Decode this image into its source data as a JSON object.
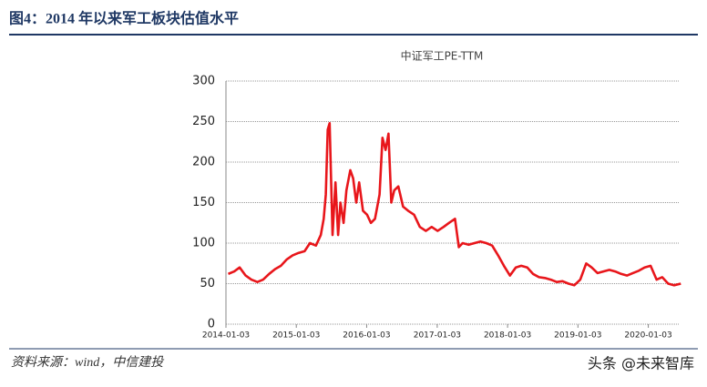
{
  "header": {
    "title": "图4：2014 年以来军工板块估值水平"
  },
  "chart_data": {
    "type": "line",
    "title": "中证军工PE-TTM",
    "color": "#e8161b",
    "x": [
      "2014-01-15",
      "2014-02-15",
      "2014-03-15",
      "2014-04-15",
      "2014-05-15",
      "2014-06-15",
      "2014-07-15",
      "2014-08-15",
      "2014-09-15",
      "2014-10-15",
      "2014-11-15",
      "2014-12-15",
      "2015-01-15",
      "2015-02-15",
      "2015-03-15",
      "2015-04-15",
      "2015-05-10",
      "2015-05-25",
      "2015-06-05",
      "2015-06-15",
      "2015-06-25",
      "2015-07-10",
      "2015-07-25",
      "2015-08-08",
      "2015-08-20",
      "2015-09-05",
      "2015-09-20",
      "2015-10-10",
      "2015-10-25",
      "2015-11-10",
      "2015-11-25",
      "2015-12-15",
      "2016-01-05",
      "2016-01-25",
      "2016-02-15",
      "2016-03-10",
      "2016-03-25",
      "2016-04-10",
      "2016-04-25",
      "2016-05-10",
      "2016-05-25",
      "2016-06-15",
      "2016-07-10",
      "2016-08-05",
      "2016-09-05",
      "2016-10-05",
      "2016-11-05",
      "2016-12-05",
      "2017-01-05",
      "2017-02-05",
      "2017-03-05",
      "2017-04-05",
      "2017-04-25",
      "2017-05-15",
      "2017-06-15",
      "2017-07-15",
      "2017-08-15",
      "2017-09-15",
      "2017-10-15",
      "2017-11-15",
      "2017-12-15",
      "2018-01-15",
      "2018-02-15",
      "2018-03-15",
      "2018-04-15",
      "2018-05-15",
      "2018-06-15",
      "2018-07-15",
      "2018-08-15",
      "2018-09-15",
      "2018-10-15",
      "2018-11-15",
      "2018-12-15",
      "2019-01-15",
      "2019-02-15",
      "2019-03-15",
      "2019-04-15",
      "2019-05-15",
      "2019-06-15",
      "2019-07-15",
      "2019-08-15",
      "2019-09-15",
      "2019-10-15",
      "2019-11-15",
      "2019-12-15",
      "2020-01-15",
      "2020-02-15",
      "2020-03-15",
      "2020-04-15",
      "2020-05-15",
      "2020-06-20"
    ],
    "values": [
      62,
      65,
      70,
      60,
      55,
      52,
      55,
      62,
      68,
      72,
      80,
      85,
      88,
      90,
      100,
      97,
      110,
      130,
      160,
      240,
      248,
      110,
      175,
      110,
      150,
      125,
      165,
      190,
      180,
      150,
      175,
      140,
      135,
      125,
      130,
      160,
      230,
      215,
      235,
      150,
      165,
      170,
      145,
      140,
      135,
      120,
      115,
      120,
      115,
      120,
      125,
      130,
      95,
      100,
      98,
      100,
      102,
      100,
      97,
      85,
      72,
      60,
      70,
      72,
      70,
      62,
      58,
      57,
      55,
      52,
      53,
      50,
      48,
      55,
      75,
      70,
      63,
      65,
      67,
      65,
      62,
      60,
      63,
      66,
      70,
      72,
      55,
      58,
      50,
      48,
      50
    ],
    "xlim": [
      "2014-01-03",
      "2020-07-31"
    ],
    "xticks": [
      "2014-01-03",
      "2015-01-03",
      "2016-01-03",
      "2017-01-03",
      "2018-01-03",
      "2019-01-03",
      "2020-01-03"
    ],
    "ylim": [
      0,
      300
    ],
    "yticks": [
      0,
      50,
      100,
      150,
      200,
      250,
      300
    ],
    "grid": true
  },
  "footer": {
    "source": "资料来源：wind，中信建投",
    "watermark": "头条 @未来智库"
  }
}
